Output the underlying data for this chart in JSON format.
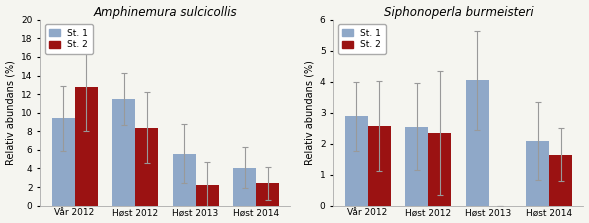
{
  "chart1": {
    "title": "Amphinemura sulcicollis",
    "categories": [
      "Vår 2012",
      "Høst 2012",
      "Høst 2013",
      "Høst 2014"
    ],
    "st1_values": [
      9.4,
      11.5,
      5.6,
      4.1
    ],
    "st1_errors": [
      3.5,
      2.8,
      3.2,
      2.2
    ],
    "st2_values": [
      12.8,
      8.4,
      2.2,
      2.4
    ],
    "st2_errors": [
      4.8,
      3.8,
      2.5,
      1.8
    ],
    "ylim": [
      0,
      20
    ],
    "yticks": [
      0,
      2,
      4,
      6,
      8,
      10,
      12,
      14,
      16,
      18,
      20
    ],
    "ylabel": "Relativ abundans (%)"
  },
  "chart2": {
    "title": "Siphonoperla burmeisteri",
    "categories": [
      "Vår 2012",
      "Høst 2012",
      "Høst 2013",
      "Høst 2014"
    ],
    "st1_values": [
      2.88,
      2.55,
      4.05,
      2.08
    ],
    "st1_errors": [
      1.1,
      1.4,
      1.6,
      1.25
    ],
    "st2_values": [
      2.58,
      2.35,
      0.0,
      1.65
    ],
    "st2_errors": [
      1.45,
      2.0,
      0.0,
      0.85
    ],
    "ylim": [
      0,
      6
    ],
    "yticks": [
      0,
      1,
      2,
      3,
      4,
      5,
      6
    ],
    "ylabel": "Relativ abundans (%)"
  },
  "bar_width": 0.38,
  "color_st1": "#8FA8C8",
  "color_st2": "#9B1212",
  "error_color": "#999999",
  "legend_labels": [
    "St. 1",
    "St. 2"
  ],
  "title_fontsize": 8.5,
  "tick_fontsize": 6.5,
  "label_fontsize": 7,
  "legend_fontsize": 6.5,
  "bg_color": "#f5f5f0"
}
